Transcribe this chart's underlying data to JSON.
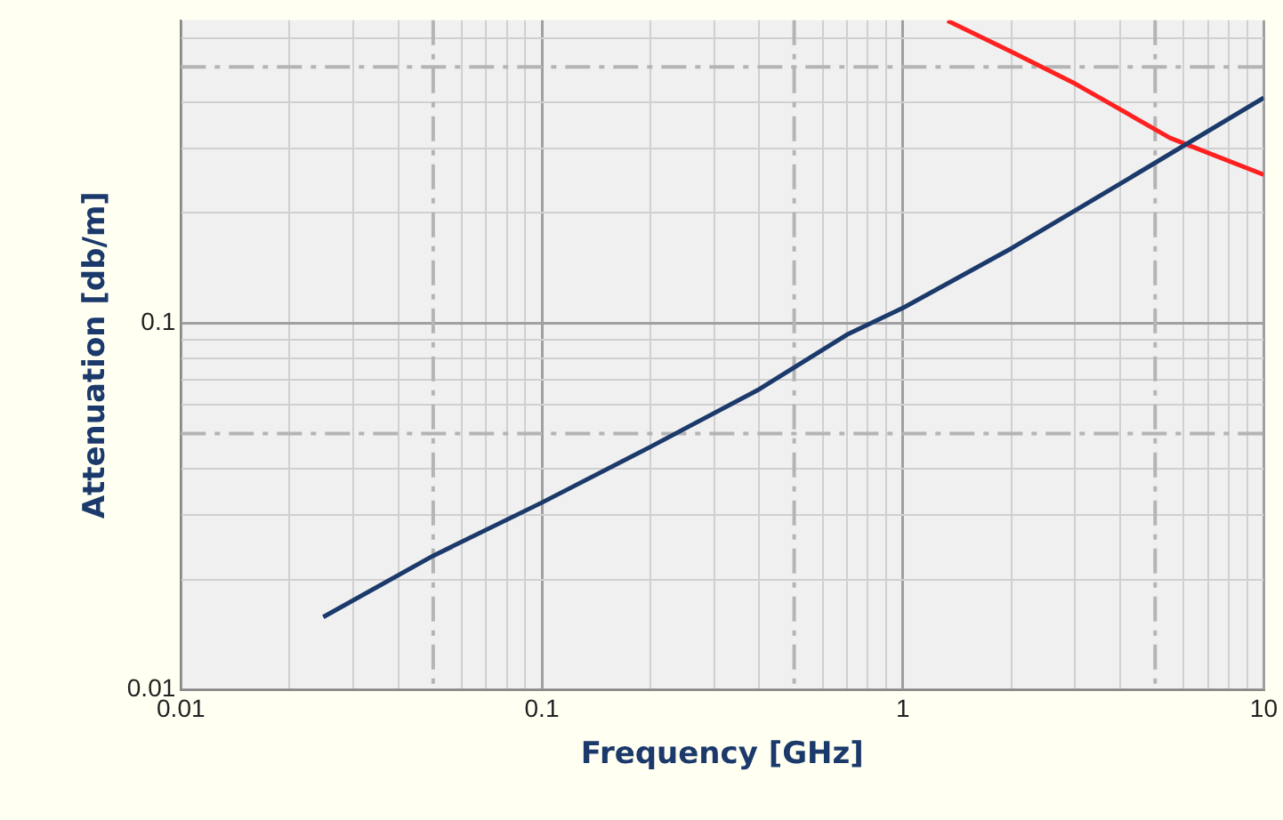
{
  "chart_data": {
    "type": "line",
    "xlabel": "Frequency [GHz]",
    "ylabel": "Attenuation [db/m]",
    "log": "xy",
    "grid": true,
    "legend": false,
    "marker": "none",
    "line_style": "solid",
    "xlim": [
      0.01,
      10
    ],
    "ylim": [
      0.01,
      0.67
    ],
    "xticks": [
      0.01,
      {
        "value": 0.02,
        "label": null
      },
      {
        "value": 0.03,
        "label": null
      },
      {
        "value": 0.04,
        "label": null
      },
      {
        "value": 0.06,
        "label": null
      },
      {
        "value": 0.07,
        "label": null
      },
      {
        "value": 0.08,
        "label": null
      },
      {
        "value": 0.09,
        "label": null
      },
      0.1,
      {
        "value": 0.2,
        "label": null
      },
      {
        "value": 0.3,
        "label": null
      },
      {
        "value": 0.4,
        "label": null
      },
      {
        "value": 0.6,
        "label": null
      },
      {
        "value": 0.7,
        "label": null
      },
      {
        "value": 0.8,
        "label": null
      },
      {
        "value": 0.9,
        "label": null
      },
      1,
      {
        "value": 2,
        "label": null
      },
      {
        "value": 3,
        "label": null
      },
      {
        "value": 4,
        "label": null
      },
      {
        "value": 6,
        "label": null
      },
      {
        "value": 7,
        "label": null
      },
      {
        "value": 8,
        "label": null
      },
      {
        "value": 9,
        "label": null
      },
      10
    ],
    "yticks": [
      0.01,
      {
        "value": 0.02,
        "label": null
      },
      {
        "value": 0.03,
        "label": null
      },
      {
        "value": 0.04,
        "label": null
      },
      {
        "value": 0.06,
        "label": null
      },
      {
        "value": 0.07,
        "label": null
      },
      {
        "value": 0.08,
        "label": null
      },
      {
        "value": 0.09,
        "label": null
      },
      0.1,
      {
        "value": 0.2,
        "label": null
      },
      {
        "value": 0.3,
        "label": null
      },
      {
        "value": 0.4,
        "label": null
      },
      {
        "value": 0.6,
        "label": null
      }
    ],
    "ref_lines": [
      {
        "axis": "x",
        "value": 0.05,
        "color": "#b4b4b4",
        "line_style": "dashed"
      },
      {
        "axis": "x",
        "value": 0.5,
        "color": "#b4b4b4",
        "line_style": "dashed"
      },
      {
        "axis": "x",
        "value": 5,
        "color": "#b4b4b4",
        "line_style": "dashed"
      },
      {
        "axis": "y",
        "value": 0.05,
        "color": "#b4b4b4",
        "line_style": "dashed"
      },
      {
        "axis": "y",
        "value": 0.5,
        "color": "#b4b4b4",
        "line_style": "dashed"
      }
    ],
    "series": [
      {
        "color": "#1b3a6b",
        "x": [
          0.0248,
          0.05,
          0.1,
          0.2,
          0.4,
          0.7,
          1,
          2,
          4,
          10
        ],
        "values": [
          0.0158,
          0.0232,
          0.0324,
          0.046,
          0.066,
          0.093,
          0.11,
          0.16,
          0.24,
          0.412
        ]
      },
      {
        "color": "#ff2020",
        "x": [
          1.33,
          2,
          3,
          5.5,
          10
        ],
        "values": [
          0.668,
          0.55,
          0.45,
          0.32,
          0.254
        ]
      }
    ]
  }
}
